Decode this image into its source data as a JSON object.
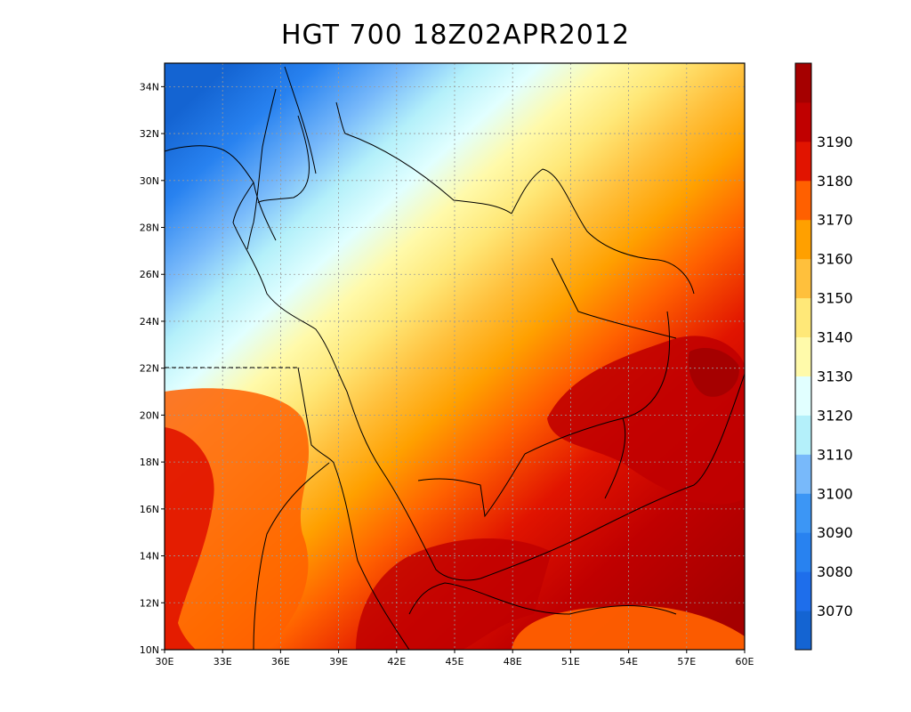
{
  "title": "HGT 700 18Z02APR2012",
  "map": {
    "lon_range": [
      30,
      60
    ],
    "lat_range": [
      10,
      35
    ],
    "lon_ticks": [
      "30E",
      "33E",
      "36E",
      "39E",
      "42E",
      "45E",
      "48E",
      "51E",
      "54E",
      "57E",
      "60E"
    ],
    "lat_ticks": [
      "10N",
      "12N",
      "14N",
      "16N",
      "18N",
      "20N",
      "22N",
      "24N",
      "26N",
      "28N",
      "30N",
      "32N",
      "34N"
    ],
    "grid": "dotted"
  },
  "colorbar": {
    "labels": [
      "3070",
      "3080",
      "3090",
      "3100",
      "3110",
      "3120",
      "3130",
      "3140",
      "3150",
      "3160",
      "3170",
      "3180",
      "3190"
    ],
    "colors": [
      "#1464d2",
      "#1e6eeb",
      "#2882f0",
      "#3c96f5",
      "#78b9fa",
      "#b4f0fa",
      "#e1ffff",
      "#fffaaa",
      "#ffe878",
      "#ffc03c",
      "#ffa000",
      "#ff6000",
      "#e11400",
      "#c00000",
      "#a50000"
    ]
  }
}
